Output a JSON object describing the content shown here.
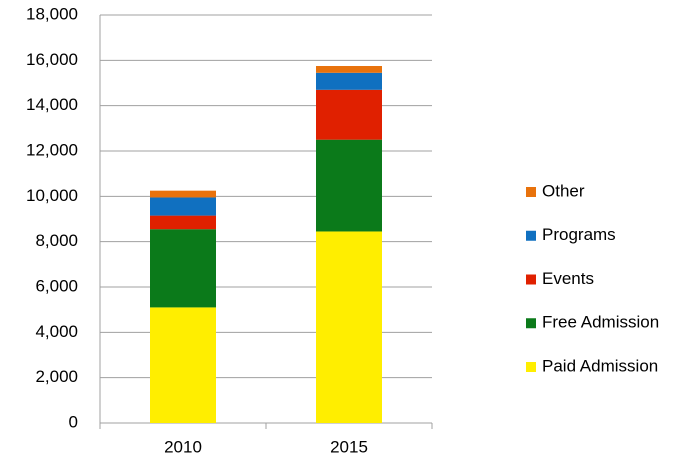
{
  "chart_data": {
    "type": "stacked_bar",
    "categories": [
      "2010",
      "2015"
    ],
    "series": [
      {
        "name": "Paid Admission",
        "color": "#ffee00",
        "values": [
          5100,
          8450
        ]
      },
      {
        "name": "Free Admission",
        "color": "#0b7a1a",
        "values": [
          3450,
          4050
        ]
      },
      {
        "name": "Events",
        "color": "#e02000",
        "values": [
          600,
          2200
        ]
      },
      {
        "name": "Programs",
        "color": "#1070c0",
        "values": [
          800,
          750
        ]
      },
      {
        "name": "Other",
        "color": "#e8720c",
        "values": [
          300,
          300
        ]
      }
    ],
    "ylim": [
      0,
      18000
    ],
    "yticks": [
      0,
      {
        "value": 2000,
        "label": "2,000"
      },
      {
        "value": 4000,
        "label": "4,000"
      },
      {
        "value": 6000,
        "label": "6,000"
      },
      {
        "value": 8000,
        "label": "8,000"
      },
      {
        "value": 10000,
        "label": "10,000"
      },
      {
        "value": 12000,
        "label": "12,000"
      },
      {
        "value": 14000,
        "label": "14,000"
      },
      {
        "value": 16000,
        "label": "16,000"
      },
      {
        "value": 18000,
        "label": "18,000"
      }
    ],
    "grid": true,
    "legend": "right"
  }
}
